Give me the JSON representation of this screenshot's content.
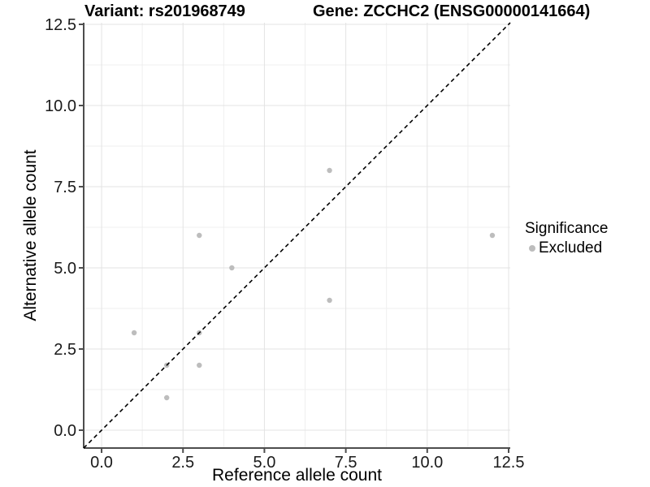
{
  "header": {
    "title_left": "Variant: rs201968749",
    "title_right": "Gene: ZCCHC2 (ENSG00000141664)"
  },
  "chart_data": {
    "type": "scatter",
    "title_left": "Variant: rs201968749",
    "title_right": "Gene: ZCCHC2 (ENSG00000141664)",
    "xlabel": "Reference allele count",
    "ylabel": "Alternative allele count",
    "xlim": [
      -0.55,
      12.55
    ],
    "ylim": [
      -0.55,
      12.55
    ],
    "x_major_ticks": [
      0,
      2.5,
      5,
      7.5,
      10,
      12.5
    ],
    "x_tick_labels": [
      "0.0",
      "2.5",
      "5.0",
      "7.5",
      "10.0",
      "12.5"
    ],
    "y_major_ticks": [
      0,
      2.5,
      5,
      7.5,
      10,
      12.5
    ],
    "y_tick_labels": [
      "0.0",
      "2.5",
      "5.0",
      "7.5",
      "10.0",
      "12.5"
    ],
    "minor_ticks": [
      1.25,
      3.75,
      6.25,
      8.75,
      11.25
    ],
    "grid": "major+minor",
    "series": [
      {
        "name": "Excluded",
        "color": "#bdbdbd",
        "marker": "circle",
        "points": [
          [
            1,
            3
          ],
          [
            2,
            1
          ],
          [
            2,
            2
          ],
          [
            3,
            2
          ],
          [
            3,
            3
          ],
          [
            3,
            6
          ],
          [
            4,
            5
          ],
          [
            7,
            4
          ],
          [
            7,
            8
          ],
          [
            12,
            6
          ]
        ]
      }
    ],
    "reference_line": {
      "kind": "identity y=x",
      "style": "dashed",
      "color": "#000000"
    },
    "legend": {
      "title": "Significance",
      "position": "right",
      "entries": [
        {
          "label": "Excluded",
          "color": "#bdbdbd"
        }
      ]
    },
    "colors": {
      "grid_major": "#e3e3e3",
      "grid_minor": "#efefef",
      "axis_line": "#4d4d4d",
      "tick_text": "#1a1a1a"
    }
  }
}
